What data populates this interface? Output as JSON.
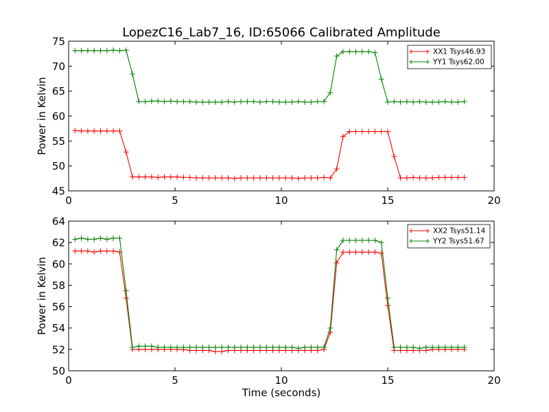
{
  "figure_title": "LopezC16_Lab7_16, ID:65066 Calibrated Amplitude",
  "colors": {
    "xx": "#ff0000",
    "yy": "#008000",
    "axis": "#000000",
    "background": "#ffffff"
  },
  "chart_data": [
    {
      "type": "line",
      "title": "LopezC16_Lab7_16, ID:65066 Calibrated Amplitude",
      "xlabel": "",
      "ylabel": "Power in Kelvin",
      "xlim": [
        0,
        20
      ],
      "ylim": [
        45,
        75
      ],
      "xticks": [
        0,
        5,
        10,
        15,
        20
      ],
      "yticks": [
        45,
        50,
        55,
        60,
        65,
        70,
        75
      ],
      "grid": false,
      "legend_position": "top-right",
      "x": [
        0.3,
        0.6,
        0.9,
        1.2,
        1.5,
        1.8,
        2.1,
        2.4,
        2.7,
        3.0,
        3.3,
        3.6,
        3.9,
        4.2,
        4.5,
        4.8,
        5.1,
        5.4,
        5.7,
        6.0,
        6.3,
        6.6,
        6.9,
        7.2,
        7.5,
        7.8,
        8.1,
        8.4,
        8.7,
        9.0,
        9.3,
        9.6,
        9.9,
        10.2,
        10.5,
        10.8,
        11.1,
        11.4,
        11.7,
        12.0,
        12.3,
        12.6,
        12.9,
        13.2,
        13.5,
        13.8,
        14.1,
        14.4,
        14.7,
        15.0,
        15.3,
        15.6,
        15.9,
        16.2,
        16.5,
        16.8,
        17.1,
        17.4,
        17.7,
        18.0,
        18.3,
        18.6
      ],
      "series": [
        {
          "name": "XX1 Tsys46.93",
          "color": "#ff0000",
          "values": [
            57.1,
            57.0,
            57.0,
            57.0,
            57.0,
            57.0,
            57.0,
            57.0,
            52.8,
            47.8,
            47.8,
            47.8,
            47.8,
            47.7,
            47.8,
            47.8,
            47.8,
            47.7,
            47.7,
            47.6,
            47.6,
            47.6,
            47.6,
            47.6,
            47.6,
            47.5,
            47.6,
            47.6,
            47.6,
            47.6,
            47.6,
            47.6,
            47.6,
            47.6,
            47.6,
            47.5,
            47.6,
            47.6,
            47.6,
            47.7,
            47.6,
            49.4,
            55.9,
            56.9,
            56.9,
            56.9,
            56.9,
            56.9,
            56.9,
            56.9,
            51.9,
            47.6,
            47.6,
            47.7,
            47.6,
            47.6,
            47.6,
            47.7,
            47.7,
            47.7,
            47.7,
            47.7
          ]
        },
        {
          "name": "YY1 Tsys62.00",
          "color": "#008000",
          "values": [
            73.1,
            73.1,
            73.1,
            73.1,
            73.1,
            73.1,
            73.2,
            73.1,
            73.2,
            68.4,
            62.9,
            62.9,
            63.0,
            63.0,
            62.9,
            63.0,
            62.9,
            62.9,
            62.9,
            62.8,
            62.8,
            62.8,
            62.8,
            62.8,
            62.9,
            62.8,
            62.9,
            62.9,
            62.9,
            62.8,
            62.9,
            62.9,
            62.8,
            62.8,
            62.8,
            62.9,
            62.8,
            62.8,
            62.9,
            62.9,
            64.7,
            72.0,
            72.9,
            72.9,
            72.9,
            72.9,
            72.9,
            72.7,
            67.4,
            62.8,
            62.9,
            62.8,
            62.9,
            62.8,
            62.9,
            62.8,
            62.8,
            62.8,
            62.9,
            62.8,
            62.8,
            62.9
          ]
        }
      ]
    },
    {
      "type": "line",
      "title": "",
      "xlabel": "Time (seconds)",
      "ylabel": "Power in Kelvin",
      "xlim": [
        0,
        20
      ],
      "ylim": [
        50,
        64
      ],
      "xticks": [
        0,
        5,
        10,
        15,
        20
      ],
      "yticks": [
        50,
        52,
        54,
        56,
        58,
        60,
        62,
        64
      ],
      "grid": false,
      "legend_position": "top-right",
      "x": [
        0.3,
        0.6,
        0.9,
        1.2,
        1.5,
        1.8,
        2.1,
        2.4,
        2.7,
        3.0,
        3.3,
        3.6,
        3.9,
        4.2,
        4.5,
        4.8,
        5.1,
        5.4,
        5.7,
        6.0,
        6.3,
        6.6,
        6.9,
        7.2,
        7.5,
        7.8,
        8.1,
        8.4,
        8.7,
        9.0,
        9.3,
        9.6,
        9.9,
        10.2,
        10.5,
        10.8,
        11.1,
        11.4,
        11.7,
        12.0,
        12.3,
        12.6,
        12.9,
        13.2,
        13.5,
        13.8,
        14.1,
        14.4,
        14.7,
        15.0,
        15.3,
        15.6,
        15.9,
        16.2,
        16.5,
        16.8,
        17.1,
        17.4,
        17.7,
        18.0,
        18.3,
        18.6
      ],
      "series": [
        {
          "name": "XX2 Tsys51.14",
          "color": "#ff0000",
          "values": [
            61.2,
            61.2,
            61.2,
            61.1,
            61.2,
            61.2,
            61.2,
            61.1,
            56.8,
            52.0,
            52.0,
            52.0,
            52.0,
            52.0,
            52.0,
            52.0,
            52.0,
            52.0,
            51.9,
            51.9,
            51.9,
            51.9,
            51.8,
            51.8,
            51.9,
            51.9,
            51.9,
            51.9,
            51.9,
            51.9,
            51.9,
            51.9,
            51.9,
            51.9,
            51.9,
            51.9,
            51.9,
            51.9,
            51.9,
            52.0,
            53.6,
            60.1,
            61.1,
            61.1,
            61.1,
            61.1,
            61.1,
            61.1,
            61.0,
            56.1,
            51.9,
            51.9,
            51.9,
            51.9,
            51.9,
            51.9,
            52.0,
            52.0,
            52.0,
            52.0,
            52.0,
            52.0
          ]
        },
        {
          "name": "YY2 Tsys51.67",
          "color": "#008000",
          "values": [
            62.3,
            62.4,
            62.3,
            62.3,
            62.4,
            62.3,
            62.4,
            62.4,
            57.5,
            52.2,
            52.3,
            52.3,
            52.3,
            52.2,
            52.2,
            52.2,
            52.2,
            52.2,
            52.2,
            52.2,
            52.2,
            52.2,
            52.2,
            52.2,
            52.2,
            52.2,
            52.2,
            52.2,
            52.2,
            52.2,
            52.2,
            52.2,
            52.2,
            52.2,
            52.2,
            52.1,
            52.2,
            52.2,
            52.2,
            52.2,
            54.0,
            61.3,
            62.2,
            62.2,
            62.2,
            62.2,
            62.2,
            62.2,
            62.0,
            56.8,
            52.2,
            52.2,
            52.2,
            52.2,
            52.1,
            52.2,
            52.2,
            52.2,
            52.2,
            52.2,
            52.2,
            52.2
          ]
        }
      ]
    }
  ]
}
